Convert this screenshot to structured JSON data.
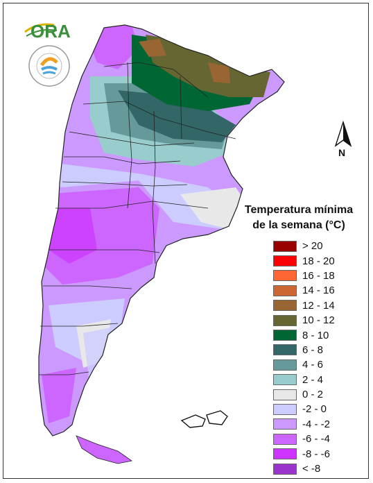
{
  "logos": {
    "ora": {
      "text": "ORA",
      "name": "ora-logo"
    },
    "smn": {
      "text": "SERVICIO METEOROLÓGICO NACIONAL · ARGENTINA",
      "name": "smn-logo"
    }
  },
  "north_arrow": {
    "label": "N"
  },
  "legend": {
    "title_line1": "Temperatura mínima",
    "title_line2": "de la semana (°C)",
    "items": [
      {
        "label": "> 20",
        "color": "#990000"
      },
      {
        "label": "18 - 20",
        "color": "#ff0000"
      },
      {
        "label": "16 - 18",
        "color": "#ff6633"
      },
      {
        "label": "14 - 16",
        "color": "#cc6633"
      },
      {
        "label": "12 - 14",
        "color": "#996633"
      },
      {
        "label": "10 - 12",
        "color": "#666633"
      },
      {
        "label": "8 - 10",
        "color": "#006633"
      },
      {
        "label": "6 - 8",
        "color": "#336666"
      },
      {
        "label": "4 - 6",
        "color": "#669999"
      },
      {
        "label": "2 - 4",
        "color": "#99cccc"
      },
      {
        "label": "0 - 2",
        "color": "#e8e8e8"
      },
      {
        "label": "-2 - 0",
        "color": "#ccccff"
      },
      {
        "label": "-4 - -2",
        "color": "#cc99ff"
      },
      {
        "label": "-6 - -4",
        "color": "#cc66ff"
      },
      {
        "label": "-8 - -6",
        "color": "#cc33ff"
      },
      {
        "label": "< -8",
        "color": "#9933cc"
      }
    ]
  }
}
